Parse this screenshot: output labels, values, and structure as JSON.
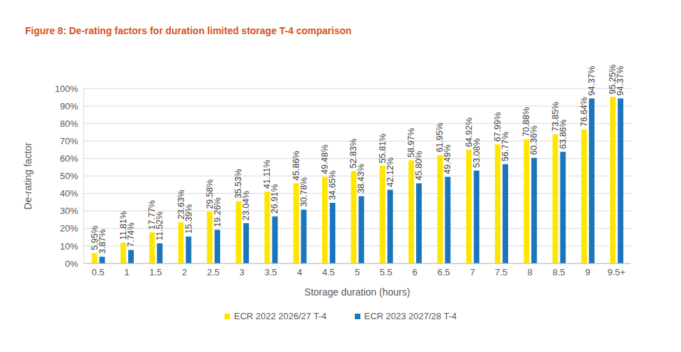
{
  "chart_data": {
    "type": "bar",
    "title": "Figure 8: De-rating factors for duration limited storage T-4 comparison",
    "x_label": "Storage duration (hours)",
    "y_label": "De-rating factor",
    "categories": [
      "0.5",
      "1",
      "1.5",
      "2",
      "2.5",
      "3",
      "3.5",
      "4",
      "4.5",
      "5",
      "5.5",
      "6",
      "6.5",
      "7",
      "7.5",
      "8",
      "8.5",
      "9",
      "9.5+"
    ],
    "series": [
      {
        "name": "ECR 2022 2026/27 T-4",
        "color": "#FFE600",
        "values": [
          5.95,
          11.81,
          17.77,
          23.63,
          29.58,
          35.53,
          41.11,
          45.86,
          49.48,
          52.83,
          55.81,
          58.97,
          61.95,
          64.92,
          67.99,
          70.88,
          73.85,
          76.64,
          95.25
        ],
        "value_labels": [
          "5.95%",
          "11.81%",
          "17.77%",
          "23.63%",
          "29.58%",
          "35.53%",
          "41.11%",
          "45.86%",
          "49.48%",
          "52.83%",
          "55.81%",
          "58.97%",
          "61.95%",
          "64.92%",
          "67.99%",
          "70.88%",
          "73.85%",
          "76.64%",
          "95.25%"
        ]
      },
      {
        "name": "ECR 2023 2027/28 T-4",
        "color": "#1B75BC",
        "values": [
          3.87,
          7.74,
          11.52,
          15.39,
          19.26,
          23.04,
          26.91,
          30.78,
          34.65,
          38.43,
          42.12,
          45.8,
          49.49,
          53.08,
          56.77,
          60.36,
          63.86,
          94.37,
          94.37
        ],
        "value_labels": [
          "3.87%",
          "7.74%",
          "11.52%",
          "15.39%",
          "19.26%",
          "23.04%",
          "26.91%",
          "30.78%",
          "34.65%",
          "38.43%",
          "42.12%",
          "45.80%",
          "49.49%",
          "53.08%",
          "56.77%",
          "60.36%",
          "63.86%",
          "94.37%",
          "94.37%"
        ]
      }
    ],
    "ylim": [
      0,
      100
    ],
    "yticks": [
      {
        "value": 0,
        "label": "0%"
      },
      {
        "value": 10,
        "label": "10%"
      },
      {
        "value": 20,
        "label": "20%"
      },
      {
        "value": 30,
        "label": "30%"
      },
      {
        "value": 40,
        "label": "40%"
      },
      {
        "value": 50,
        "label": "50%"
      },
      {
        "value": 60,
        "label": "60%"
      },
      {
        "value": 70,
        "label": "70%"
      },
      {
        "value": 80,
        "label": "80%"
      },
      {
        "value": 90,
        "label": "90%"
      },
      {
        "value": 100,
        "label": "100%"
      }
    ],
    "grid": true,
    "data_labels": true,
    "legend": "bottom"
  }
}
